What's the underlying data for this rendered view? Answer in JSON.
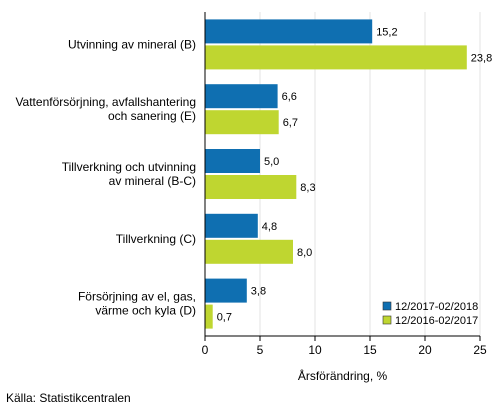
{
  "chart_data": {
    "type": "bar",
    "orientation": "horizontal",
    "categories": [
      [
        "Utvinning av mineral (B)"
      ],
      [
        "Vattenförsörjning, avfallshantering",
        "och sanering (E)"
      ],
      [
        "Tillverkning och utvinning",
        "av mineral (B-C)"
      ],
      [
        "Tillverkning (C)"
      ],
      [
        "Försörjning av el, gas,",
        "värme och kyla (D)"
      ]
    ],
    "series": [
      {
        "name": "12/2017-02/2018",
        "color": "#0f6fb1",
        "values": [
          15.2,
          6.6,
          5.0,
          4.8,
          3.8
        ]
      },
      {
        "name": "12/2016-02/2017",
        "color": "#bfd630",
        "values": [
          23.8,
          6.7,
          8.3,
          8.0,
          0.7
        ]
      }
    ],
    "value_labels": [
      [
        "15,2",
        "6,6",
        "5,0",
        "4,8",
        "3,8"
      ],
      [
        "23,8",
        "6,7",
        "8,3",
        "8,0",
        "0,7"
      ]
    ],
    "xlabel": "Årsförändring, %",
    "xlim": [
      0,
      25
    ],
    "xticks": [
      0,
      5,
      10,
      15,
      20,
      25
    ],
    "grid": true,
    "legend_position": "bottom-right"
  },
  "source": "Källa: Statistikcentralen"
}
